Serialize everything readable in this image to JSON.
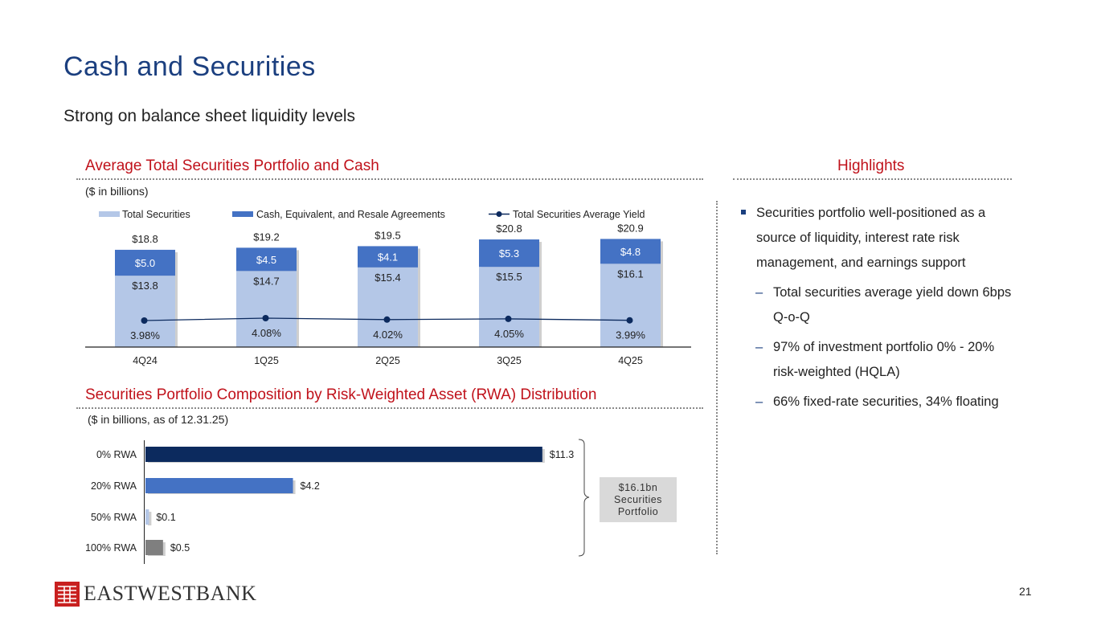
{
  "page": {
    "title": "Cash and Securities",
    "subtitle": "Strong on balance sheet liquidity levels",
    "page_number": "21",
    "logo_text": "EASTWESTBANK"
  },
  "colors": {
    "total_securities": "#b4c7e7",
    "cash": "#4472c4",
    "yield_line": "#0c2a5e",
    "rwa0": "#0c2a5e",
    "rwa20": "#4472c4",
    "rwa50": "#b4c7e7",
    "rwa100": "#7f7f7f",
    "accent_red": "#c0121b",
    "brand_blue": "#1b3f7f",
    "logo_red": "#c8201f"
  },
  "chart_data": [
    {
      "type": "bar",
      "stacked": true,
      "title": "Average Total Securities Portfolio and Cash",
      "note": "($ in billions)",
      "categories": [
        "4Q24",
        "1Q25",
        "2Q25",
        "3Q25",
        "4Q25"
      ],
      "series": [
        {
          "name": "Total Securities",
          "values": [
            13.8,
            14.7,
            15.4,
            15.5,
            16.1
          ],
          "labels": [
            "$13.8",
            "$14.7",
            "$15.4",
            "$15.5",
            "$16.1"
          ]
        },
        {
          "name": "Cash, Equivalent, and Resale Agreements",
          "values": [
            5.0,
            4.5,
            4.1,
            5.3,
            4.8
          ],
          "labels": [
            "$5.0",
            "$4.5",
            "$4.1",
            "$5.3",
            "$4.8"
          ]
        }
      ],
      "totals": [
        "$18.8",
        "$19.2",
        "$19.5",
        "$20.8",
        "$20.9"
      ],
      "line": {
        "name": "Total Securities Average Yield",
        "values": [
          3.98,
          4.08,
          4.02,
          4.05,
          3.99
        ],
        "labels": [
          "3.98%",
          "4.08%",
          "4.02%",
          "4.05%",
          "3.99%"
        ]
      },
      "ylim": [
        0,
        21
      ]
    },
    {
      "type": "bar",
      "orientation": "horizontal",
      "title": "Securities Portfolio Composition by Risk-Weighted Asset (RWA) Distribution",
      "note": "($ in billions, as of 12.31.25)",
      "categories": [
        "0% RWA",
        "20% RWA",
        "50% RWA",
        "100% RWA"
      ],
      "values": [
        11.3,
        4.2,
        0.1,
        0.5
      ],
      "labels": [
        "$11.3",
        "$4.2",
        "$0.1",
        "$0.5"
      ],
      "callout_lines": [
        "$16.1bn",
        "Securities",
        "Portfolio"
      ],
      "xlim": [
        0,
        11.3
      ]
    }
  ],
  "highlights": {
    "title": "Highlights",
    "bullet": "Securities portfolio well-positioned as a source of liquidity, interest rate risk management, and earnings support",
    "dash": "–",
    "subs": [
      "Total securities average yield down 6bps Q-o-Q",
      "97% of investment portfolio 0% - 20% risk-weighted (HQLA)",
      "66% fixed-rate securities, 34% floating"
    ]
  }
}
